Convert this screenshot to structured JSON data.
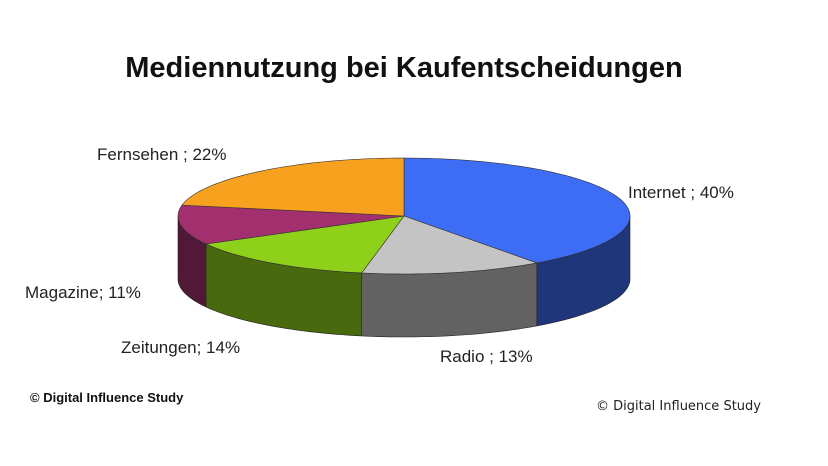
{
  "chart_data": {
    "type": "pie",
    "title": "Mediennutzung bei Kaufentscheidungen",
    "slices": [
      {
        "label": "Internet ; 40%",
        "value": 40,
        "color": "#3d6cf5"
      },
      {
        "label": "Radio ; 13%",
        "value": 13,
        "color": "#c4c4c4"
      },
      {
        "label": "Zeitungen; 14%",
        "value": 14,
        "color": "#8fd11a"
      },
      {
        "label": "Magazine; 11%",
        "value": 11,
        "color": "#a3306e"
      },
      {
        "label": "Fernsehen ; 22%",
        "value": 22,
        "color": "#f7a11f"
      }
    ],
    "style": "3d"
  },
  "credits": {
    "left": "© Digital Influence Study",
    "right": "© Digital Influence Study"
  }
}
